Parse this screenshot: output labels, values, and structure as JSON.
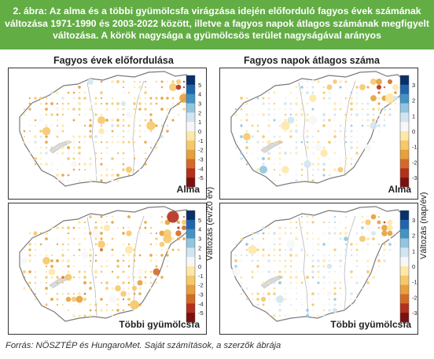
{
  "header": {
    "lines": [
      "2. ábra: Az alma és a többi gyümölcsfa virágzása idején előforduló fagyos évek számának",
      "változása 1971-1990 és 2003-2022 között, illetve a fagyos napok átlagos számának megfigyelt",
      "változása. A körök nagysága a gyümölcsös terület nagyságával arányos"
    ],
    "background": "#63ad45"
  },
  "columns": {
    "left_title": "Fagyos évek előfordulása",
    "right_title": "Fagyos napok átlagos száma"
  },
  "panels": [
    {
      "crop": "Alma",
      "variable": "Fagyos évek előfordulása"
    },
    {
      "crop": "Alma",
      "variable": "Fagyos napok átlagos száma"
    },
    {
      "crop": "Többi gyümölcsfa",
      "variable": "Fagyos évek előfordulása"
    },
    {
      "crop": "Többi gyümölcsfa",
      "variable": "Fagyos napok átlagos száma"
    }
  ],
  "colorbars": {
    "left": {
      "title": "Változás (év/20 év)",
      "ticks": [
        "5",
        "4",
        "3",
        "2",
        "1",
        "0",
        "-1",
        "-2",
        "-3",
        "-4",
        "-5"
      ],
      "colors": [
        "#08306b",
        "#2166ac",
        "#4393c3",
        "#92c5de",
        "#d1e5f0",
        "#f7f7f7",
        "#fee8a8",
        "#f5c86a",
        "#e6a03c",
        "#d46a28",
        "#b2301c",
        "#7a1010"
      ]
    },
    "right": {
      "title": "Változás (nap/év)",
      "ticks": [
        "3",
        "2",
        "1",
        "0",
        "-1",
        "-2",
        "-3"
      ],
      "colors": [
        "#08306b",
        "#2166ac",
        "#4393c3",
        "#92c5de",
        "#d1e5f0",
        "#f7f7f7",
        "#fee8a8",
        "#f5c86a",
        "#e6a03c",
        "#d46a28",
        "#b2301c",
        "#7a1010"
      ]
    }
  },
  "source": "Forrás: NÖSZTÉP és HungaroMet. Saját számítások, a szerzők ábrája"
}
